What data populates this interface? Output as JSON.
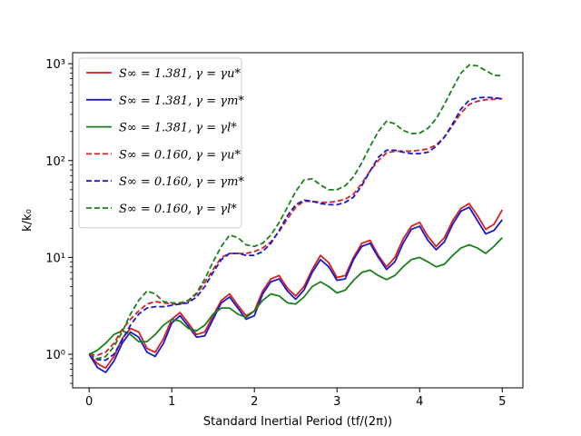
{
  "chart_data": {
    "type": "line",
    "title": "",
    "xlabel": "Standard Inertial Period (tf/(2π))",
    "ylabel": "k/k₀",
    "xlim": [
      -0.2,
      5.25
    ],
    "ylim": [
      0.45,
      1300
    ],
    "yscale": "log",
    "grid": false,
    "legend_position": "upper-left",
    "x_ticks": [
      "0",
      "1",
      "2",
      "3",
      "4",
      "5"
    ],
    "y_ticks": [
      "10⁰",
      "10¹",
      "10²",
      "10³"
    ],
    "series": [
      {
        "name": "S∞ = 1.381, γ = γu*",
        "color": "#d62020",
        "dash": "solid",
        "x": [
          0.0,
          0.1,
          0.2,
          0.3,
          0.4,
          0.5,
          0.6,
          0.7,
          0.8,
          0.9,
          1.0,
          1.1,
          1.2,
          1.3,
          1.4,
          1.5,
          1.6,
          1.7,
          1.8,
          1.9,
          2.0,
          2.1,
          2.2,
          2.3,
          2.4,
          2.5,
          2.6,
          2.7,
          2.8,
          2.9,
          3.0,
          3.1,
          3.2,
          3.3,
          3.4,
          3.5,
          3.6,
          3.7,
          3.8,
          3.9,
          4.0,
          4.1,
          4.2,
          4.3,
          4.4,
          4.5,
          4.6,
          4.7,
          4.8,
          4.9,
          5.0
        ],
        "y": [
          1.0,
          0.8,
          0.72,
          0.95,
          1.45,
          1.85,
          1.7,
          1.15,
          1.05,
          1.45,
          2.3,
          2.7,
          2.1,
          1.6,
          1.7,
          2.5,
          3.6,
          4.2,
          3.2,
          2.5,
          2.8,
          4.5,
          6.0,
          6.5,
          4.8,
          4.0,
          5.0,
          7.5,
          10.5,
          8.8,
          6.2,
          6.5,
          10.0,
          14.0,
          15.0,
          10.5,
          8.0,
          10.0,
          15.5,
          21.0,
          23.0,
          16.5,
          13.0,
          16.0,
          24.0,
          32.0,
          36.0,
          27.0,
          19.5,
          22.0,
          31.0
        ]
      },
      {
        "name": "S∞ = 1.381, γ = γm*",
        "color": "#1a1acc",
        "dash": "solid",
        "x": [
          0.0,
          0.1,
          0.2,
          0.3,
          0.4,
          0.5,
          0.6,
          0.7,
          0.8,
          0.9,
          1.0,
          1.1,
          1.2,
          1.3,
          1.4,
          1.5,
          1.6,
          1.7,
          1.8,
          1.9,
          2.0,
          2.1,
          2.2,
          2.3,
          2.4,
          2.5,
          2.6,
          2.7,
          2.8,
          2.9,
          3.0,
          3.1,
          3.2,
          3.3,
          3.4,
          3.5,
          3.6,
          3.7,
          3.8,
          3.9,
          4.0,
          4.1,
          4.2,
          4.3,
          4.4,
          4.5,
          4.6,
          4.7,
          4.8,
          4.9,
          5.0
        ],
        "y": [
          1.0,
          0.73,
          0.65,
          0.85,
          1.3,
          1.7,
          1.5,
          1.05,
          0.95,
          1.3,
          2.1,
          2.5,
          1.95,
          1.5,
          1.55,
          2.3,
          3.4,
          3.9,
          3.0,
          2.3,
          2.5,
          4.2,
          5.6,
          6.0,
          4.5,
          3.7,
          4.6,
          7.0,
          9.5,
          8.0,
          5.8,
          6.0,
          9.5,
          13.0,
          14.0,
          10.0,
          7.5,
          9.0,
          14.0,
          19.5,
          21.0,
          15.0,
          12.0,
          14.5,
          22.0,
          30.0,
          33.0,
          24.0,
          17.5,
          19.0,
          24.5
        ]
      },
      {
        "name": "S∞ = 1.381, γ = γl*",
        "color": "#1a801a",
        "dash": "solid",
        "x": [
          0.0,
          0.1,
          0.2,
          0.3,
          0.4,
          0.5,
          0.6,
          0.7,
          0.8,
          0.9,
          1.0,
          1.1,
          1.2,
          1.3,
          1.4,
          1.5,
          1.6,
          1.7,
          1.8,
          1.9,
          2.0,
          2.1,
          2.2,
          2.3,
          2.4,
          2.5,
          2.6,
          2.7,
          2.8,
          2.9,
          3.0,
          3.1,
          3.2,
          3.3,
          3.4,
          3.5,
          3.6,
          3.7,
          3.8,
          3.9,
          4.0,
          4.1,
          4.2,
          4.3,
          4.4,
          4.5,
          4.6,
          4.7,
          4.8,
          4.9,
          5.0
        ],
        "y": [
          1.0,
          1.1,
          1.3,
          1.6,
          1.75,
          1.6,
          1.35,
          1.35,
          1.6,
          2.0,
          2.3,
          2.2,
          1.85,
          1.75,
          2.0,
          2.6,
          3.0,
          3.0,
          2.6,
          2.4,
          2.8,
          3.6,
          4.2,
          4.0,
          3.4,
          3.3,
          3.9,
          5.0,
          5.6,
          5.0,
          4.3,
          4.6,
          5.8,
          7.0,
          7.4,
          6.5,
          5.9,
          6.5,
          8.0,
          9.5,
          10.0,
          9.0,
          8.0,
          8.5,
          10.5,
          12.5,
          13.5,
          12.5,
          11.0,
          13.0,
          16.0
        ]
      },
      {
        "name": "S∞ = 0.160, γ = γu*",
        "color": "#d62020",
        "dash": "dashed",
        "x": [
          0.0,
          0.1,
          0.2,
          0.3,
          0.4,
          0.5,
          0.6,
          0.7,
          0.8,
          0.9,
          1.0,
          1.1,
          1.2,
          1.3,
          1.4,
          1.5,
          1.6,
          1.7,
          1.8,
          1.9,
          2.0,
          2.1,
          2.2,
          2.3,
          2.4,
          2.5,
          2.6,
          2.7,
          2.8,
          2.9,
          3.0,
          3.1,
          3.2,
          3.3,
          3.4,
          3.5,
          3.6,
          3.7,
          3.8,
          3.9,
          4.0,
          4.1,
          4.2,
          4.3,
          4.4,
          4.5,
          4.6,
          4.7,
          4.8,
          4.9,
          5.0
        ],
        "y": [
          1.0,
          0.98,
          1.05,
          1.3,
          1.8,
          2.3,
          2.8,
          3.3,
          3.5,
          3.4,
          3.3,
          3.3,
          3.5,
          4.2,
          5.5,
          7.5,
          10.0,
          11.0,
          11.0,
          11.0,
          11.5,
          12.5,
          14.5,
          18.5,
          25.0,
          33.0,
          38.0,
          38.0,
          37.0,
          37.0,
          38.0,
          40.0,
          45.0,
          58.0,
          78.0,
          100.0,
          120.0,
          125.0,
          125.0,
          125.0,
          128.0,
          132.0,
          145.0,
          175.0,
          230.0,
          310.0,
          380.0,
          410.0,
          425.0,
          430.0,
          435.0
        ]
      },
      {
        "name": "S∞ = 0.160, γ = γm*",
        "color": "#1a1acc",
        "dash": "dashed",
        "x": [
          0.0,
          0.1,
          0.2,
          0.3,
          0.4,
          0.5,
          0.6,
          0.7,
          0.8,
          0.9,
          1.0,
          1.1,
          1.2,
          1.3,
          1.4,
          1.5,
          1.6,
          1.7,
          1.8,
          1.9,
          2.0,
          2.1,
          2.2,
          2.3,
          2.4,
          2.5,
          2.6,
          2.7,
          2.8,
          2.9,
          3.0,
          3.1,
          3.2,
          3.3,
          3.4,
          3.5,
          3.6,
          3.7,
          3.8,
          3.9,
          4.0,
          4.1,
          4.2,
          4.3,
          4.4,
          4.5,
          4.6,
          4.7,
          4.8,
          4.9,
          5.0
        ],
        "y": [
          1.0,
          0.88,
          0.87,
          1.0,
          1.4,
          2.0,
          2.6,
          3.0,
          3.1,
          3.1,
          3.2,
          3.3,
          3.4,
          3.9,
          5.0,
          7.0,
          9.5,
          11.0,
          11.0,
          10.5,
          10.5,
          11.5,
          14.0,
          19.0,
          27.0,
          35.0,
          39.0,
          38.0,
          36.0,
          35.0,
          35.0,
          37.0,
          42.0,
          55.0,
          78.0,
          108.0,
          128.0,
          128.0,
          122.0,
          118.0,
          118.0,
          122.0,
          140.0,
          175.0,
          240.0,
          340.0,
          420.0,
          445.0,
          450.0,
          445.0,
          435.0
        ]
      },
      {
        "name": "S∞ = 0.160, γ = γl*",
        "color": "#1a801a",
        "dash": "dashed",
        "x": [
          0.0,
          0.1,
          0.2,
          0.3,
          0.4,
          0.5,
          0.6,
          0.7,
          0.8,
          0.9,
          1.0,
          1.1,
          1.2,
          1.3,
          1.4,
          1.5,
          1.6,
          1.7,
          1.8,
          1.9,
          2.0,
          2.1,
          2.2,
          2.3,
          2.4,
          2.5,
          2.6,
          2.7,
          2.8,
          2.9,
          3.0,
          3.1,
          3.2,
          3.3,
          3.4,
          3.5,
          3.6,
          3.7,
          3.8,
          3.9,
          4.0,
          4.1,
          4.2,
          4.3,
          4.4,
          4.5,
          4.6,
          4.7,
          4.8,
          4.9,
          5.0
        ],
        "y": [
          1.0,
          0.9,
          0.95,
          1.2,
          1.7,
          2.6,
          3.6,
          4.5,
          4.2,
          3.5,
          3.4,
          3.4,
          3.6,
          4.3,
          6.0,
          9.0,
          13.0,
          17.0,
          16.0,
          13.5,
          13.0,
          14.0,
          17.0,
          23.0,
          33.0,
          48.0,
          63.0,
          65.0,
          56.0,
          50.0,
          50.0,
          55.0,
          68.0,
          95.0,
          140.0,
          200.0,
          255.0,
          240.0,
          205.0,
          190.0,
          192.0,
          215.0,
          270.0,
          380.0,
          560.0,
          800.0,
          970.0,
          950.0,
          850.0,
          760.0,
          750.0
        ]
      }
    ]
  }
}
